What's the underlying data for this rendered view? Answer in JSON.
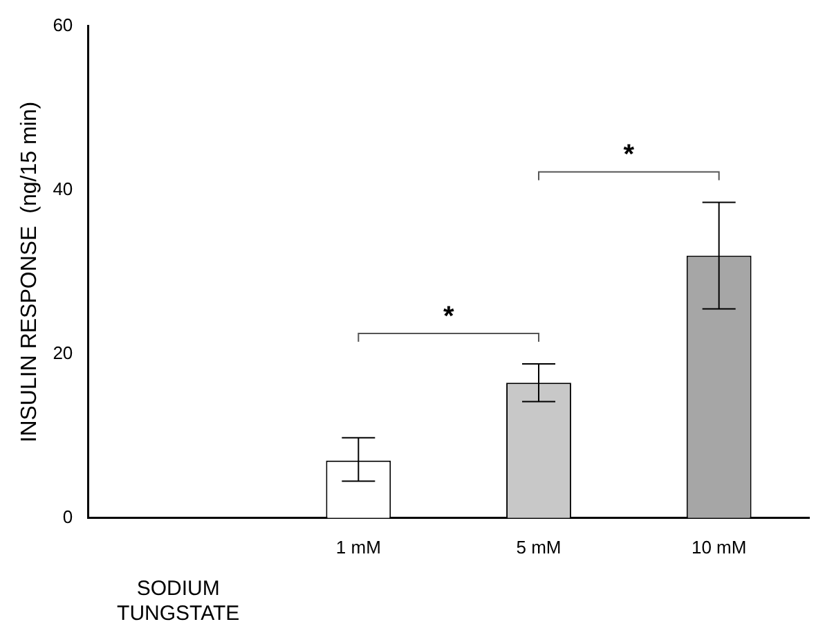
{
  "chart_data": {
    "type": "bar",
    "xlabel": "SODIUM TUNGSTATE",
    "ylabel": "INSULIN RESPONSE  (ng/15 min)",
    "categories": [
      null,
      "1 mM",
      "5 mM",
      "10 mM"
    ],
    "values": [
      null,
      7,
      16.5,
      32
    ],
    "colors": [
      "#ffffff",
      "#ffffff",
      "#c8c8c8",
      "#a6a6a6"
    ],
    "errors": [
      null,
      [
        4.5,
        9.8
      ],
      [
        14.2,
        18.8
      ],
      [
        25.5,
        38.5
      ]
    ],
    "annotations": [
      "*",
      "*"
    ],
    "ylim": [
      0,
      60
    ],
    "yticks": [
      0,
      20,
      40,
      60
    ],
    "grid": false,
    "legend": false
  }
}
